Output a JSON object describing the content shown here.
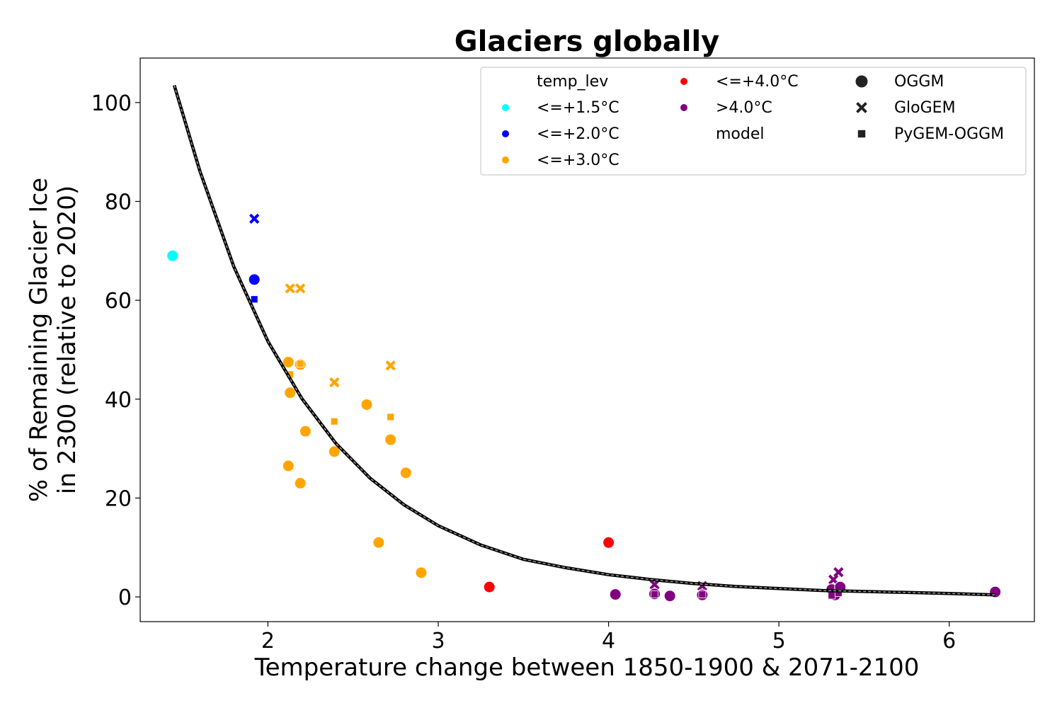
{
  "chart_data": {
    "type": "scatter",
    "title": "Glaciers globally",
    "xlabel": "Temperature change between 1850-1900 & 2071-2100",
    "ylabel_line1": "% of Remaining Glacier Ice",
    "ylabel_line2": "in 2300 (relative to 2020)",
    "xlim": [
      1.25,
      6.5
    ],
    "ylim": [
      -5,
      109
    ],
    "xticks": [
      2,
      3,
      4,
      5,
      6
    ],
    "yticks": [
      0,
      20,
      40,
      60,
      80,
      100
    ],
    "grid": false,
    "legend_position": "top-right",
    "legend": {
      "hue_title": "temp_lev",
      "style_title": "model",
      "hue_entries": [
        {
          "label": "<=+1.5°C",
          "color": "#00ffff"
        },
        {
          "label": "<=+2.0°C",
          "color": "#0000ff"
        },
        {
          "label": "<=+3.0°C",
          "color": "#ffa500"
        },
        {
          "label": "<=+4.0°C",
          "color": "#ff0000"
        },
        {
          "label": ">4.0°C",
          "color": "#800080"
        }
      ],
      "style_entries": [
        {
          "label": "OGGM",
          "marker": "circle"
        },
        {
          "label": "GloGEM",
          "marker": "x"
        },
        {
          "label": "PyGEM-OGGM",
          "marker": "square"
        }
      ]
    },
    "fit_curve": {
      "description_type": "exponential",
      "x": [
        1.45,
        1.6,
        1.8,
        2.0,
        2.2,
        2.4,
        2.6,
        2.8,
        3.0,
        3.25,
        3.5,
        3.75,
        4.0,
        4.25,
        4.5,
        4.75,
        5.0,
        5.25,
        5.5,
        5.75,
        6.0,
        6.27
      ],
      "y": [
        103.5,
        86.2,
        66.8,
        51.7,
        40.1,
        31.0,
        24.0,
        18.6,
        14.4,
        10.5,
        7.6,
        5.9,
        4.5,
        3.5,
        2.7,
        2.1,
        1.7,
        1.3,
        1.1,
        0.9,
        0.7,
        0.4
      ]
    },
    "points": [
      {
        "x": 1.44,
        "y": 69.0,
        "level": 0,
        "model": "OGGM"
      },
      {
        "x": 1.92,
        "y": 64.2,
        "level": 1,
        "model": "OGGM"
      },
      {
        "x": 1.92,
        "y": 76.5,
        "level": 1,
        "model": "GloGEM"
      },
      {
        "x": 1.92,
        "y": 60.2,
        "level": 1,
        "model": "PyGEM-OGGM"
      },
      {
        "x": 2.13,
        "y": 62.4,
        "level": 2,
        "model": "GloGEM"
      },
      {
        "x": 2.19,
        "y": 62.4,
        "level": 2,
        "model": "GloGEM"
      },
      {
        "x": 2.12,
        "y": 47.5,
        "level": 2,
        "model": "OGGM"
      },
      {
        "x": 2.19,
        "y": 47.0,
        "level": 2,
        "model": "OGGM"
      },
      {
        "x": 2.19,
        "y": 47.2,
        "level": 2,
        "model": "PyGEM-OGGM"
      },
      {
        "x": 2.13,
        "y": 45.0,
        "level": 2,
        "model": "PyGEM-OGGM"
      },
      {
        "x": 2.13,
        "y": 41.3,
        "level": 2,
        "model": "OGGM"
      },
      {
        "x": 2.22,
        "y": 33.5,
        "level": 2,
        "model": "OGGM"
      },
      {
        "x": 2.12,
        "y": 26.5,
        "level": 2,
        "model": "OGGM"
      },
      {
        "x": 2.19,
        "y": 23.0,
        "level": 2,
        "model": "OGGM"
      },
      {
        "x": 2.39,
        "y": 43.4,
        "level": 2,
        "model": "GloGEM"
      },
      {
        "x": 2.39,
        "y": 35.5,
        "level": 2,
        "model": "PyGEM-OGGM"
      },
      {
        "x": 2.39,
        "y": 29.4,
        "level": 2,
        "model": "OGGM"
      },
      {
        "x": 2.58,
        "y": 38.9,
        "level": 2,
        "model": "OGGM"
      },
      {
        "x": 2.72,
        "y": 46.8,
        "level": 2,
        "model": "GloGEM"
      },
      {
        "x": 2.72,
        "y": 36.4,
        "level": 2,
        "model": "PyGEM-OGGM"
      },
      {
        "x": 2.72,
        "y": 31.8,
        "level": 2,
        "model": "OGGM"
      },
      {
        "x": 2.81,
        "y": 25.1,
        "level": 2,
        "model": "OGGM"
      },
      {
        "x": 2.65,
        "y": 11.0,
        "level": 2,
        "model": "OGGM"
      },
      {
        "x": 2.9,
        "y": 4.9,
        "level": 2,
        "model": "OGGM"
      },
      {
        "x": 3.3,
        "y": 2.0,
        "level": 3,
        "model": "OGGM"
      },
      {
        "x": 4.0,
        "y": 11.0,
        "level": 3,
        "model": "OGGM"
      },
      {
        "x": 4.04,
        "y": 0.5,
        "level": 4,
        "model": "OGGM"
      },
      {
        "x": 4.27,
        "y": 2.5,
        "level": 4,
        "model": "GloGEM"
      },
      {
        "x": 4.27,
        "y": 0.6,
        "level": 4,
        "model": "OGGM"
      },
      {
        "x": 4.27,
        "y": 0.5,
        "level": 4,
        "model": "PyGEM-OGGM"
      },
      {
        "x": 4.36,
        "y": 0.2,
        "level": 4,
        "model": "OGGM"
      },
      {
        "x": 4.55,
        "y": 2.2,
        "level": 4,
        "model": "GloGEM"
      },
      {
        "x": 4.55,
        "y": 0.4,
        "level": 4,
        "model": "OGGM"
      },
      {
        "x": 4.55,
        "y": 0.5,
        "level": 4,
        "model": "PyGEM-OGGM"
      },
      {
        "x": 5.32,
        "y": 3.5,
        "level": 4,
        "model": "GloGEM"
      },
      {
        "x": 5.35,
        "y": 5.0,
        "level": 4,
        "model": "GloGEM"
      },
      {
        "x": 5.31,
        "y": 1.5,
        "level": 4,
        "model": "OGGM"
      },
      {
        "x": 5.33,
        "y": 0.4,
        "level": 4,
        "model": "OGGM"
      },
      {
        "x": 5.36,
        "y": 2.0,
        "level": 4,
        "model": "OGGM"
      },
      {
        "x": 5.31,
        "y": 0.3,
        "level": 4,
        "model": "PyGEM-OGGM"
      },
      {
        "x": 5.35,
        "y": 0.8,
        "level": 4,
        "model": "PyGEM-OGGM"
      },
      {
        "x": 6.27,
        "y": 1.0,
        "level": 4,
        "model": "OGGM"
      }
    ]
  }
}
